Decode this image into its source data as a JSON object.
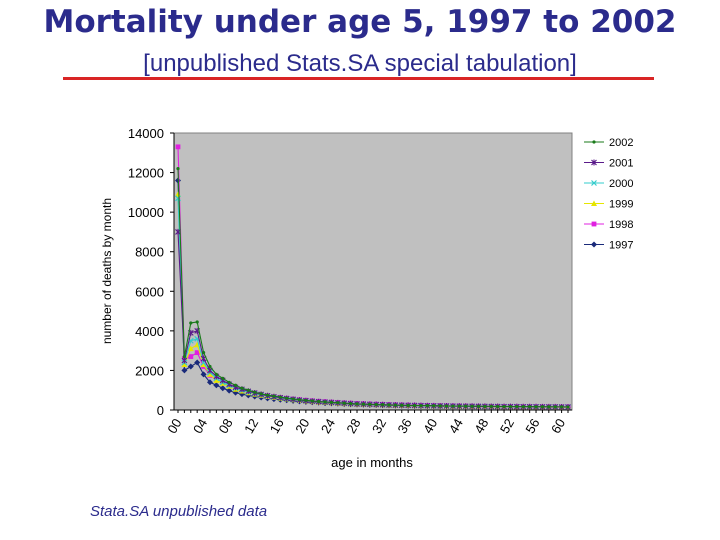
{
  "header": {
    "title": "Mortality under age 5,  1997 to 2002",
    "subtitle": "[unpublished Stats.SA  special tabulation]"
  },
  "footnote": "Stata.SA unpublished data",
  "chart_data": {
    "type": "line",
    "xlabel": "age in months",
    "ylabel": "number  of  deaths  by  month",
    "ylim": [
      0,
      14000
    ],
    "yticks": [
      0,
      2000,
      4000,
      6000,
      8000,
      10000,
      12000,
      14000
    ],
    "xlim": [
      0,
      61
    ],
    "xticks": [
      "00",
      "04",
      "08",
      "12",
      "16",
      "20",
      "24",
      "28",
      "32",
      "36",
      "40",
      "44",
      "48",
      "52",
      "56",
      "60"
    ],
    "plot_background": "#c0c0c0",
    "x": [
      0,
      1,
      2,
      3,
      4,
      5,
      6,
      7,
      8,
      9,
      10,
      11,
      12,
      13,
      14,
      15,
      16,
      17,
      18,
      19,
      20,
      21,
      22,
      23,
      24,
      25,
      26,
      27,
      28,
      29,
      30,
      31,
      32,
      33,
      34,
      35,
      36,
      37,
      38,
      39,
      40,
      41,
      42,
      43,
      44,
      45,
      46,
      47,
      48,
      49,
      50,
      51,
      52,
      53,
      54,
      55,
      56,
      57,
      58,
      59,
      60,
      61
    ],
    "series": [
      {
        "name": "2002",
        "color": "#1a7a1a",
        "marker": "dot",
        "values": [
          12200,
          2700,
          4400,
          4450,
          2900,
          2200,
          1800,
          1600,
          1400,
          1250,
          1100,
          1000,
          900,
          820,
          750,
          700,
          650,
          600,
          560,
          520,
          490,
          460,
          430,
          410,
          390,
          370,
          350,
          330,
          310,
          300,
          290,
          280,
          270,
          260,
          250,
          240,
          235,
          230,
          225,
          220,
          215,
          210,
          205,
          200,
          200,
          195,
          190,
          190,
          185,
          185,
          180,
          180,
          175,
          175,
          170,
          170,
          165,
          165,
          160,
          160,
          160,
          155
        ]
      },
      {
        "name": "2001",
        "color": "#5a1a8a",
        "marker": "star",
        "values": [
          9000,
          2500,
          3900,
          4000,
          2600,
          2000,
          1700,
          1500,
          1300,
          1150,
          1050,
          950,
          860,
          790,
          720,
          670,
          620,
          580,
          540,
          500,
          470,
          440,
          420,
          400,
          380,
          360,
          340,
          320,
          305,
          295,
          285,
          275,
          265,
          255,
          245,
          238,
          232,
          226,
          220,
          215,
          210,
          205,
          200,
          196,
          193,
          190,
          187,
          184,
          181,
          178,
          175,
          172,
          170,
          168,
          166,
          164,
          162,
          160,
          158,
          156,
          154,
          152
        ]
      },
      {
        "name": "2000",
        "color": "#33cccc",
        "marker": "x",
        "values": [
          10700,
          2400,
          3500,
          3600,
          2400,
          1900,
          1600,
          1400,
          1250,
          1100,
          1000,
          900,
          830,
          760,
          700,
          650,
          600,
          560,
          520,
          490,
          460,
          430,
          410,
          390,
          370,
          350,
          330,
          315,
          300,
          290,
          280,
          270,
          260,
          250,
          242,
          235,
          228,
          222,
          216,
          211,
          206,
          201,
          197,
          193,
          190,
          187,
          184,
          181,
          178,
          175,
          172,
          170,
          168,
          166,
          164,
          162,
          160,
          158,
          156,
          154,
          152,
          150
        ]
      },
      {
        "name": "1999",
        "color": "#e6e600",
        "marker": "triangle",
        "values": [
          10900,
          2300,
          3100,
          3300,
          2300,
          1800,
          1500,
          1350,
          1200,
          1050,
          960,
          870,
          800,
          740,
          680,
          630,
          590,
          550,
          510,
          480,
          450,
          425,
          400,
          380,
          360,
          340,
          325,
          310,
          298,
          288,
          278,
          268,
          258,
          249,
          241,
          234,
          227,
          221,
          215,
          210,
          205,
          200,
          196,
          192,
          189,
          186,
          183,
          180,
          177,
          174,
          171,
          169,
          167,
          165,
          163,
          161,
          159,
          157,
          155,
          153,
          151,
          149
        ]
      },
      {
        "name": "1998",
        "color": "#e020e0",
        "marker": "square",
        "values": [
          13300,
          2600,
          2700,
          2900,
          2200,
          1750,
          1550,
          1400,
          1250,
          1100,
          1000,
          920,
          850,
          780,
          720,
          670,
          630,
          590,
          550,
          520,
          490,
          465,
          440,
          420,
          400,
          380,
          360,
          345,
          330,
          318,
          306,
          295,
          285,
          275,
          266,
          258,
          250,
          243,
          236,
          230,
          224,
          218,
          213,
          208,
          204,
          200,
          196,
          192,
          188,
          185,
          182,
          179,
          176,
          173,
          170,
          168,
          166,
          164,
          162,
          160,
          158,
          156
        ]
      },
      {
        "name": "1997",
        "color": "#1a2a7a",
        "marker": "diamond",
        "values": [
          11600,
          2000,
          2200,
          2400,
          1800,
          1400,
          1250,
          1100,
          980,
          880,
          800,
          740,
          680,
          630,
          590,
          550,
          520,
          490,
          460,
          435,
          410,
          390,
          370,
          350,
          335,
          320,
          305,
          292,
          280,
          270,
          260,
          251,
          243,
          235,
          228,
          222,
          216,
          210,
          205,
          200,
          196,
          192,
          188,
          185,
          182,
          179,
          176,
          173,
          171,
          169,
          167,
          165,
          163,
          161,
          159,
          157,
          155,
          153,
          151,
          150,
          149,
          148
        ]
      }
    ]
  }
}
